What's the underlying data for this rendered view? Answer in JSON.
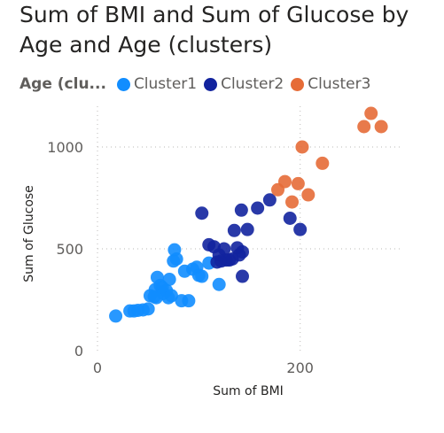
{
  "chart_data": {
    "type": "scatter",
    "title": "Sum of BMI and Sum of Glucose by Age and Age (clusters)",
    "xlabel": "Sum of BMI",
    "ylabel": "Sum of Glucose",
    "xlim": [
      0,
      300
    ],
    "ylim": [
      0,
      1200
    ],
    "x_ticks": [
      0,
      200
    ],
    "y_ticks": [
      0,
      500,
      1000
    ],
    "grid": true,
    "legend_title": "Age (clu...",
    "legend_position": "top-left",
    "series": [
      {
        "name": "Cluster1",
        "color": "#118DFF",
        "points": [
          [
            18,
            170
          ],
          [
            32,
            195
          ],
          [
            36,
            195
          ],
          [
            40,
            198
          ],
          [
            45,
            200
          ],
          [
            50,
            205
          ],
          [
            52,
            270
          ],
          [
            56,
            265
          ],
          [
            57,
            300
          ],
          [
            58,
            260
          ],
          [
            59,
            360
          ],
          [
            62,
            320
          ],
          [
            64,
            310
          ],
          [
            65,
            280
          ],
          [
            68,
            295
          ],
          [
            70,
            260
          ],
          [
            71,
            350
          ],
          [
            73,
            270
          ],
          [
            75,
            440
          ],
          [
            76,
            495
          ],
          [
            78,
            450
          ],
          [
            83,
            245
          ],
          [
            86,
            390
          ],
          [
            90,
            245
          ],
          [
            94,
            400
          ],
          [
            98,
            410
          ],
          [
            100,
            370
          ],
          [
            103,
            365
          ],
          [
            110,
            430
          ],
          [
            120,
            325
          ]
        ]
      },
      {
        "name": "Cluster2",
        "color": "#12239E",
        "points": [
          [
            103,
            675
          ],
          [
            110,
            520
          ],
          [
            115,
            510
          ],
          [
            118,
            435
          ],
          [
            120,
            470
          ],
          [
            122,
            440
          ],
          [
            125,
            500
          ],
          [
            127,
            445
          ],
          [
            130,
            445
          ],
          [
            133,
            450
          ],
          [
            135,
            590
          ],
          [
            138,
            505
          ],
          [
            140,
            470
          ],
          [
            142,
            690
          ],
          [
            143,
            485
          ],
          [
            143,
            365
          ],
          [
            148,
            595
          ],
          [
            158,
            700
          ],
          [
            170,
            740
          ],
          [
            190,
            650
          ],
          [
            200,
            595
          ]
        ]
      },
      {
        "name": "Cluster3",
        "color": "#E66C37",
        "points": [
          [
            178,
            790
          ],
          [
            185,
            830
          ],
          [
            192,
            730
          ],
          [
            198,
            820
          ],
          [
            202,
            1000
          ],
          [
            208,
            765
          ],
          [
            222,
            920
          ],
          [
            263,
            1100
          ],
          [
            270,
            1165
          ],
          [
            280,
            1100
          ]
        ]
      }
    ]
  }
}
